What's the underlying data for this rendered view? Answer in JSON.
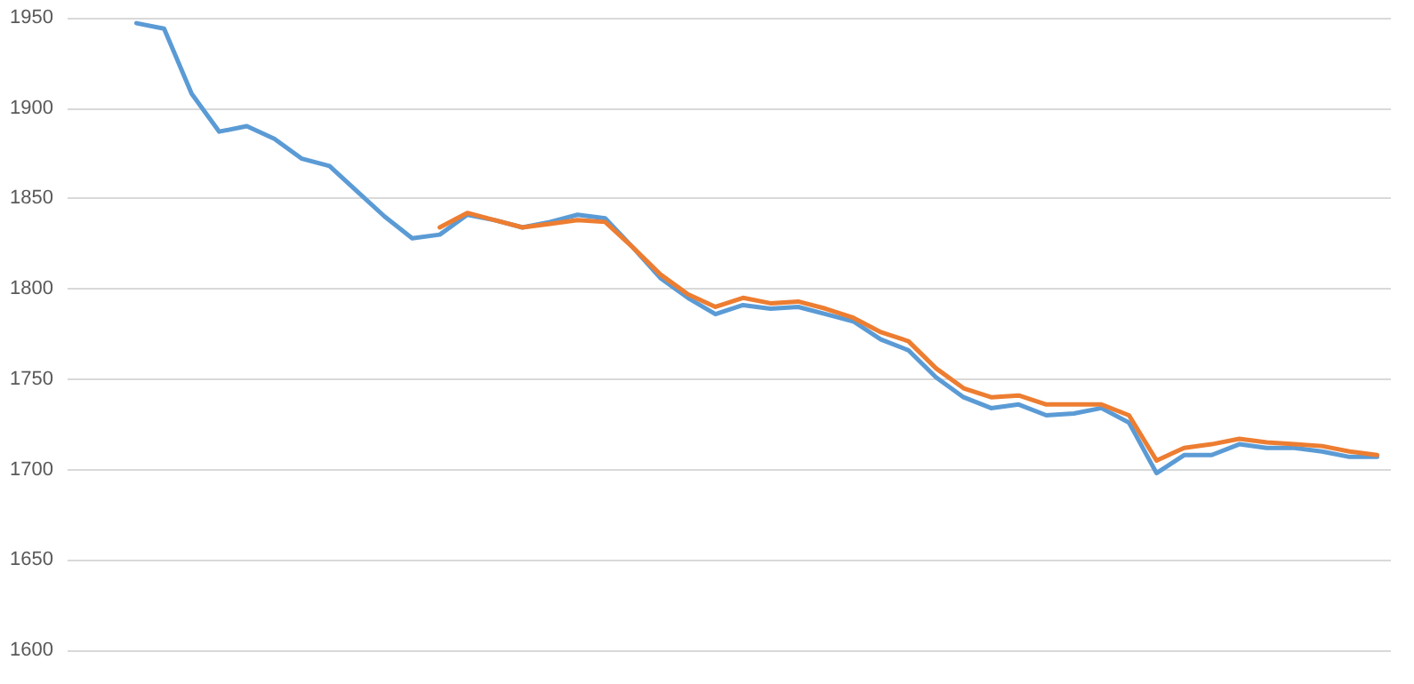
{
  "chart_data": {
    "type": "line",
    "categories": [
      null,
      null,
      null,
      null,
      null,
      null,
      null,
      null,
      null,
      null,
      null,
      null,
      null,
      null,
      null,
      null,
      null,
      null,
      null,
      null,
      null,
      null,
      null,
      null,
      null,
      null,
      null,
      null,
      null,
      null,
      null,
      null,
      null,
      null,
      null,
      null,
      null,
      null,
      null,
      null,
      null,
      null,
      null,
      null,
      null,
      null,
      null,
      null
    ],
    "series": [
      {
        "color": "#5b9bd5",
        "values": [
          null,
          null,
          1947,
          1944,
          1908,
          1887,
          1890,
          1883,
          1872,
          1868,
          1854,
          1840,
          1828,
          1830,
          1841,
          1838,
          1834,
          1837,
          1841,
          1839,
          1823,
          1806,
          1795,
          1786,
          1791,
          1789,
          1790,
          1786,
          1782,
          1772,
          1766,
          1751,
          1740,
          1734,
          1736,
          1730,
          1731,
          1734,
          1726,
          1698,
          1708,
          1708,
          1714,
          1712,
          1712,
          1710,
          1707,
          1707
        ]
      },
      {
        "color": "#ed7d31",
        "values": [
          null,
          null,
          null,
          null,
          null,
          null,
          null,
          null,
          null,
          null,
          null,
          null,
          null,
          1834,
          1842,
          1838,
          1834,
          1836,
          1838,
          1837,
          1823,
          1808,
          1797,
          1790,
          1795,
          1792,
          1793,
          1789,
          1784,
          1776,
          1771,
          1756,
          1745,
          1740,
          1741,
          1736,
          1736,
          1736,
          1730,
          1705,
          1712,
          1714,
          1717,
          1715,
          1714,
          1713,
          1710,
          1708
        ]
      }
    ],
    "ylim": [
      1600,
      1950
    ],
    "yticks": [
      1600,
      1650,
      1700,
      1750,
      1800,
      1850,
      1900,
      1950
    ],
    "grid": "y",
    "tick_labels": "y",
    "marker": "none",
    "line_style": "solid"
  }
}
